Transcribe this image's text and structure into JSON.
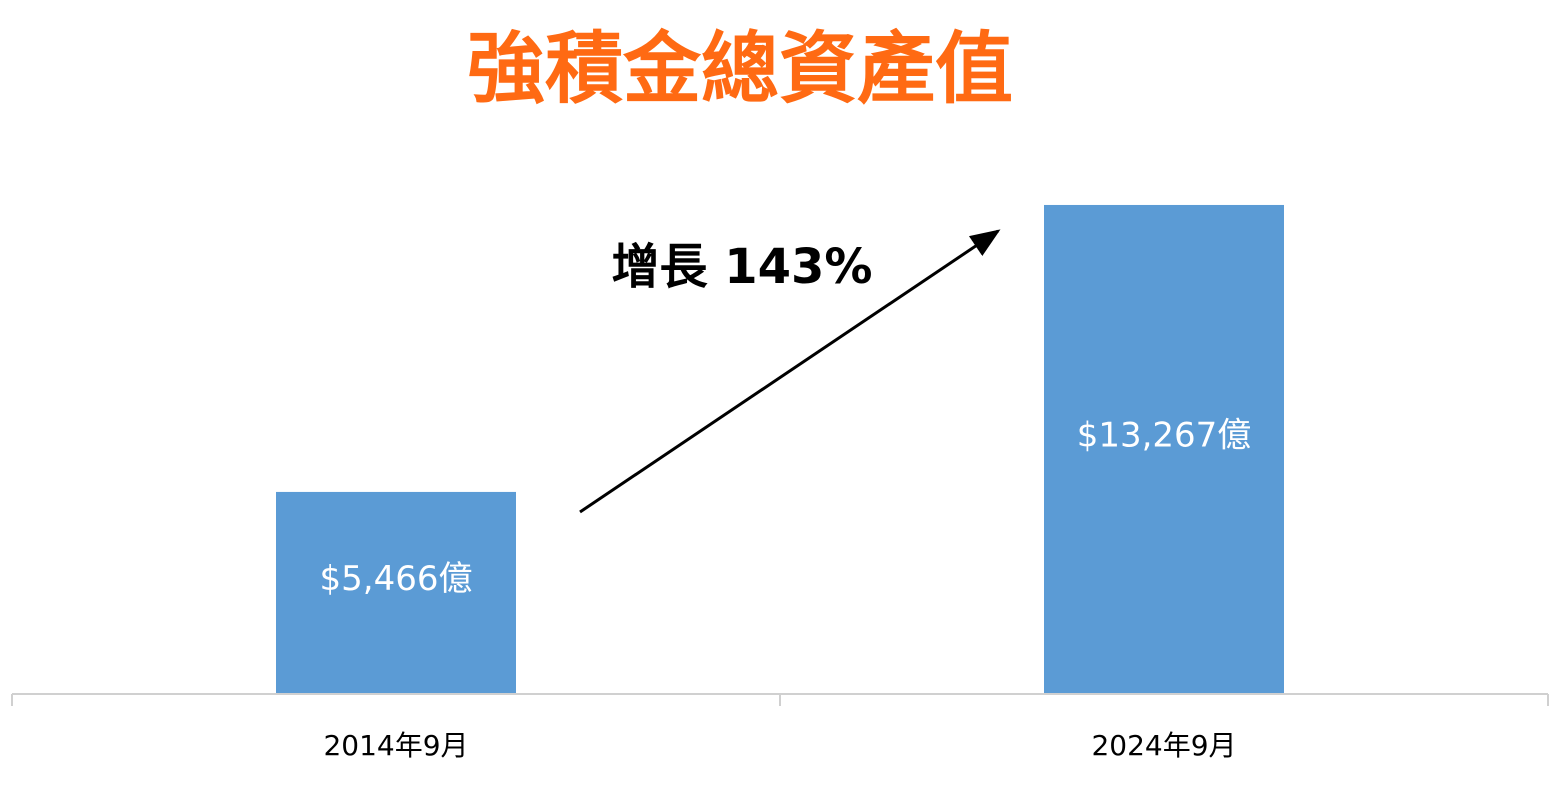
{
  "chart_data": {
    "type": "bar",
    "title": "強積金總資產值",
    "annotation": "增長 143%",
    "categories": [
      "2014年9月",
      "2024年9月"
    ],
    "values": [
      5466,
      13267
    ],
    "value_labels": [
      "$5,466億",
      "$13,267億"
    ],
    "color": "#5b9bd5",
    "title_color": "#ff6a13",
    "ylim": [
      0,
      14000
    ]
  }
}
